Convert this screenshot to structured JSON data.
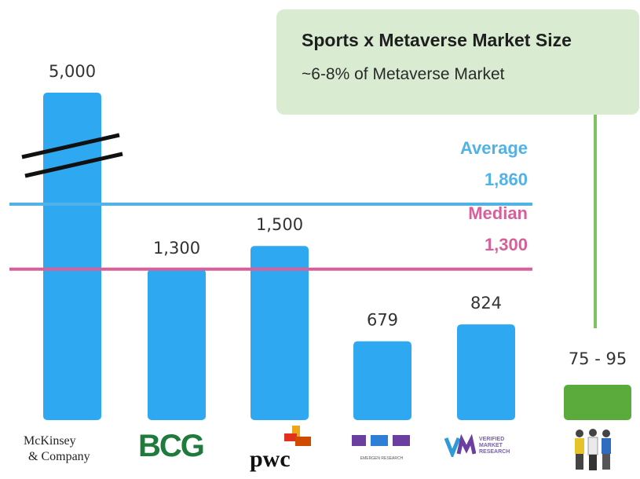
{
  "chart_data": {
    "type": "bar",
    "categories": [
      "McKinsey & Company",
      "BCG",
      "PwC",
      "Emergen Research",
      "Verified Market Research",
      "Sports x Metaverse"
    ],
    "values": [
      5000,
      1300,
      1500,
      679,
      824,
      85
    ],
    "value_labels": [
      "5,000",
      "1,300",
      "1,500",
      "679",
      "824",
      "75 - 95"
    ],
    "range_last": [
      75,
      95
    ],
    "ylim": [
      0,
      1900
    ],
    "axis_break_on": "McKinsey & Company",
    "reference_lines": [
      {
        "name": "Average",
        "value": 1860,
        "label": "1,860",
        "color": "#4fb3e8"
      },
      {
        "name": "Median",
        "value": 1300,
        "label": "1,300",
        "color": "#d8609a"
      }
    ],
    "colors": {
      "bars": "#2ea8f0",
      "last_bar": "#5aaa3c",
      "callout_line": "#7fc25f"
    },
    "grid": false,
    "legend": "none"
  },
  "callout": {
    "title": "Sports x Metaverse Market Size",
    "subtitle": "~6-8% of Metaverse Market"
  },
  "logos": {
    "mckinsey_line1": "McKinsey",
    "mckinsey_line2": "& Company",
    "bcg": "BCG",
    "pwc": "pwc",
    "emergen": "EMERGEN RESEARCH",
    "vmr": "VERIFIED MARKET RESEARCH",
    "people_icon": "people-group-icon"
  }
}
